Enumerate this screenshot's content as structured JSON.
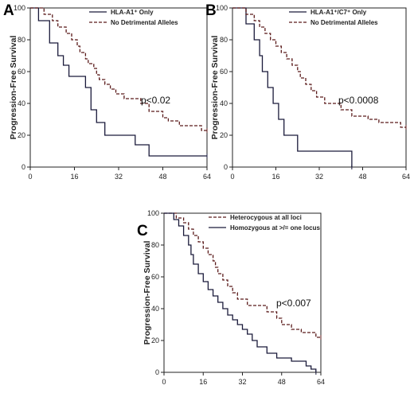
{
  "colors": {
    "solid": "#1a1a3a",
    "dashed": "#5a1a1a",
    "axis": "#222222"
  },
  "chart_data": [
    {
      "type": "line",
      "panel_label": "A",
      "ylabel": "Progression-Free Survival",
      "xlabel": "",
      "xlim": [
        0,
        64
      ],
      "ylim": [
        0,
        100
      ],
      "x_ticks": [
        0,
        16,
        32,
        48,
        64
      ],
      "y_ticks": [
        0,
        20,
        40,
        60,
        80,
        100
      ],
      "legend_position": "top-right",
      "annotation": "p<0.02",
      "series": [
        {
          "name": "HLA-A1⁺ Only",
          "style": "solid",
          "points": [
            [
              0,
              100
            ],
            [
              3,
              100
            ],
            [
              3,
              92
            ],
            [
              7,
              92
            ],
            [
              7,
              78
            ],
            [
              10,
              78
            ],
            [
              10,
              70
            ],
            [
              12,
              70
            ],
            [
              12,
              64
            ],
            [
              14,
              64
            ],
            [
              14,
              57
            ],
            [
              20,
              57
            ],
            [
              20,
              50
            ],
            [
              22,
              50
            ],
            [
              22,
              36
            ],
            [
              24,
              36
            ],
            [
              24,
              28
            ],
            [
              27,
              28
            ],
            [
              27,
              20
            ],
            [
              38,
              20
            ],
            [
              38,
              14
            ],
            [
              43,
              14
            ],
            [
              43,
              7
            ],
            [
              64,
              7
            ]
          ]
        },
        {
          "name": "No Detrimental Alleles",
          "style": "dashed",
          "points": [
            [
              0,
              100
            ],
            [
              5,
              100
            ],
            [
              5,
              96
            ],
            [
              8,
              96
            ],
            [
              8,
              92
            ],
            [
              10,
              92
            ],
            [
              10,
              88
            ],
            [
              13,
              88
            ],
            [
              13,
              84
            ],
            [
              15,
              84
            ],
            [
              15,
              80
            ],
            [
              17,
              80
            ],
            [
              17,
              76
            ],
            [
              18,
              76
            ],
            [
              18,
              72
            ],
            [
              20,
              72
            ],
            [
              20,
              68
            ],
            [
              21,
              68
            ],
            [
              21,
              65
            ],
            [
              23,
              65
            ],
            [
              23,
              62
            ],
            [
              24,
              62
            ],
            [
              24,
              58
            ],
            [
              25,
              58
            ],
            [
              25,
              55
            ],
            [
              27,
              55
            ],
            [
              27,
              52
            ],
            [
              29,
              52
            ],
            [
              29,
              49
            ],
            [
              31,
              49
            ],
            [
              31,
              46
            ],
            [
              34,
              46
            ],
            [
              34,
              43
            ],
            [
              40,
              43
            ],
            [
              40,
              40
            ],
            [
              43,
              40
            ],
            [
              43,
              35
            ],
            [
              48,
              35
            ],
            [
              48,
              31
            ],
            [
              50,
              31
            ],
            [
              50,
              29
            ],
            [
              54,
              29
            ],
            [
              54,
              26
            ],
            [
              62,
              26
            ],
            [
              62,
              23
            ],
            [
              64,
              23
            ]
          ]
        }
      ]
    },
    {
      "type": "line",
      "panel_label": "B",
      "ylabel": "Progression-Free Survival",
      "xlabel": "",
      "xlim": [
        0,
        64
      ],
      "ylim": [
        0,
        100
      ],
      "x_ticks": [
        0,
        16,
        32,
        48,
        64
      ],
      "y_ticks": [
        0,
        20,
        40,
        60,
        80,
        100
      ],
      "legend_position": "top-right",
      "annotation": "p<0.0008",
      "series": [
        {
          "name": "HLA-A1⁺/C7⁺ Only",
          "style": "solid",
          "points": [
            [
              0,
              100
            ],
            [
              5,
              100
            ],
            [
              5,
              90
            ],
            [
              8,
              90
            ],
            [
              8,
              80
            ],
            [
              10,
              80
            ],
            [
              10,
              70
            ],
            [
              11,
              70
            ],
            [
              11,
              60
            ],
            [
              13,
              60
            ],
            [
              13,
              50
            ],
            [
              15,
              50
            ],
            [
              15,
              40
            ],
            [
              17,
              40
            ],
            [
              17,
              30
            ],
            [
              19,
              30
            ],
            [
              19,
              20
            ],
            [
              24,
              20
            ],
            [
              24,
              10
            ],
            [
              44,
              10
            ],
            [
              44,
              0
            ]
          ]
        },
        {
          "name": "No Detrimental Alleles",
          "style": "dashed",
          "points": [
            [
              0,
              100
            ],
            [
              5,
              100
            ],
            [
              5,
              96
            ],
            [
              8,
              96
            ],
            [
              8,
              92
            ],
            [
              10,
              92
            ],
            [
              10,
              88
            ],
            [
              12,
              88
            ],
            [
              12,
              84
            ],
            [
              14,
              84
            ],
            [
              14,
              80
            ],
            [
              16,
              80
            ],
            [
              16,
              76
            ],
            [
              18,
              76
            ],
            [
              18,
              72
            ],
            [
              20,
              72
            ],
            [
              20,
              68
            ],
            [
              22,
              68
            ],
            [
              22,
              64
            ],
            [
              24,
              64
            ],
            [
              24,
              60
            ],
            [
              25,
              60
            ],
            [
              25,
              56
            ],
            [
              27,
              56
            ],
            [
              27,
              52
            ],
            [
              29,
              52
            ],
            [
              29,
              48
            ],
            [
              31,
              48
            ],
            [
              31,
              44
            ],
            [
              34,
              44
            ],
            [
              34,
              40
            ],
            [
              40,
              40
            ],
            [
              40,
              36
            ],
            [
              44,
              36
            ],
            [
              44,
              32
            ],
            [
              50,
              32
            ],
            [
              50,
              30
            ],
            [
              54,
              30
            ],
            [
              54,
              28
            ],
            [
              62,
              28
            ],
            [
              62,
              25
            ],
            [
              64,
              25
            ]
          ]
        }
      ]
    },
    {
      "type": "line",
      "panel_label": "C",
      "ylabel": "Progression-Free Survival",
      "xlabel": "",
      "xlim": [
        0,
        64
      ],
      "ylim": [
        0,
        100
      ],
      "x_ticks": [
        0,
        16,
        32,
        48,
        64
      ],
      "y_ticks": [
        0,
        20,
        40,
        60,
        80,
        100
      ],
      "legend_position": "top-right",
      "annotation": "p<0.007",
      "series": [
        {
          "name": "Heterocygous at all loci",
          "style": "dashed",
          "points": [
            [
              0,
              100
            ],
            [
              5,
              100
            ],
            [
              5,
              97
            ],
            [
              8,
              97
            ],
            [
              8,
              94
            ],
            [
              10,
              94
            ],
            [
              10,
              90
            ],
            [
              12,
              90
            ],
            [
              12,
              86
            ],
            [
              14,
              86
            ],
            [
              14,
              82
            ],
            [
              16,
              82
            ],
            [
              16,
              78
            ],
            [
              18,
              78
            ],
            [
              18,
              74
            ],
            [
              20,
              74
            ],
            [
              20,
              70
            ],
            [
              21,
              70
            ],
            [
              21,
              66
            ],
            [
              22,
              66
            ],
            [
              22,
              62
            ],
            [
              24,
              62
            ],
            [
              24,
              58
            ],
            [
              26,
              58
            ],
            [
              26,
              54
            ],
            [
              28,
              54
            ],
            [
              28,
              50
            ],
            [
              30,
              50
            ],
            [
              30,
              46
            ],
            [
              34,
              46
            ],
            [
              34,
              42
            ],
            [
              42,
              42
            ],
            [
              42,
              38
            ],
            [
              46,
              38
            ],
            [
              46,
              34
            ],
            [
              48,
              34
            ],
            [
              48,
              30
            ],
            [
              52,
              30
            ],
            [
              52,
              27
            ],
            [
              56,
              27
            ],
            [
              56,
              25
            ],
            [
              62,
              25
            ],
            [
              62,
              22
            ],
            [
              64,
              22
            ]
          ]
        },
        {
          "name": "Homozygous at >/= one locus",
          "style": "solid",
          "points": [
            [
              0,
              100
            ],
            [
              4,
              100
            ],
            [
              4,
              96
            ],
            [
              6,
              96
            ],
            [
              6,
              92
            ],
            [
              8,
              92
            ],
            [
              8,
              86
            ],
            [
              10,
              86
            ],
            [
              10,
              80
            ],
            [
              11,
              80
            ],
            [
              11,
              74
            ],
            [
              12,
              74
            ],
            [
              12,
              68
            ],
            [
              14,
              68
            ],
            [
              14,
              62
            ],
            [
              16,
              62
            ],
            [
              16,
              57
            ],
            [
              18,
              57
            ],
            [
              18,
              52
            ],
            [
              20,
              52
            ],
            [
              20,
              48
            ],
            [
              22,
              48
            ],
            [
              22,
              44
            ],
            [
              24,
              44
            ],
            [
              24,
              40
            ],
            [
              26,
              40
            ],
            [
              26,
              36
            ],
            [
              28,
              36
            ],
            [
              28,
              33
            ],
            [
              30,
              33
            ],
            [
              30,
              30
            ],
            [
              32,
              30
            ],
            [
              32,
              27
            ],
            [
              34,
              27
            ],
            [
              34,
              24
            ],
            [
              36,
              24
            ],
            [
              36,
              20
            ],
            [
              38,
              20
            ],
            [
              38,
              16
            ],
            [
              42,
              16
            ],
            [
              42,
              12
            ],
            [
              46,
              12
            ],
            [
              46,
              9
            ],
            [
              52,
              9
            ],
            [
              52,
              7
            ],
            [
              58,
              7
            ],
            [
              58,
              4
            ],
            [
              60,
              4
            ],
            [
              60,
              2
            ],
            [
              62,
              2
            ],
            [
              62,
              0
            ]
          ]
        }
      ]
    }
  ]
}
